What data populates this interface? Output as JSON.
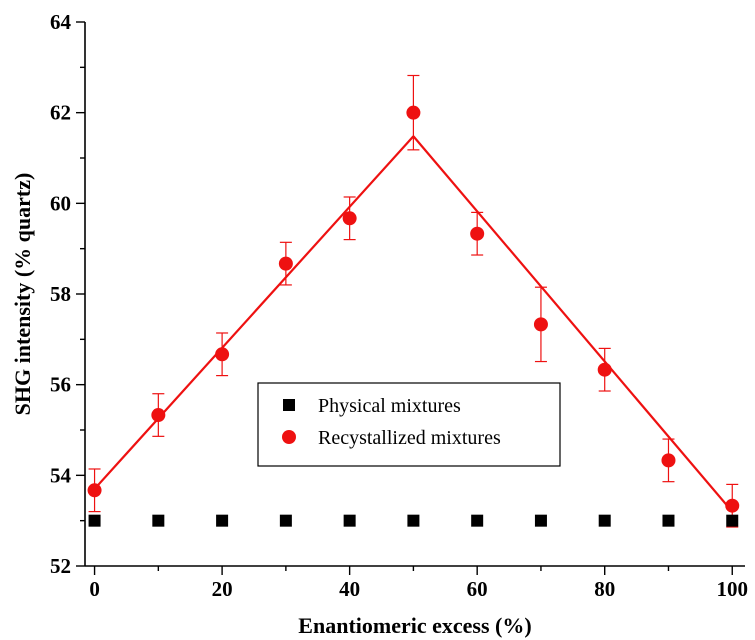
{
  "chart_data": {
    "type": "scatter",
    "xlabel": "Enantiomeric excess (%)",
    "ylabel": "SHG intensity (% quartz)",
    "xlim": [
      -1.5,
      102
    ],
    "ylim": [
      52,
      64
    ],
    "xticks": [
      0,
      20,
      40,
      60,
      80,
      100
    ],
    "yticks": [
      52,
      54,
      56,
      58,
      60,
      62,
      64
    ],
    "x_minor_step": 10,
    "y_minor_step": 1,
    "grid": false,
    "legend_position": "center",
    "series": [
      {
        "name": "Physical mixtures",
        "marker": "square",
        "color": "#000000",
        "x": [
          0,
          10,
          20,
          30,
          40,
          50,
          60,
          70,
          80,
          90,
          100
        ],
        "y": [
          53,
          53,
          53,
          53,
          53,
          53,
          53,
          53,
          53,
          53,
          53
        ]
      },
      {
        "name": "Recystallized mixtures",
        "marker": "circle",
        "color": "#ee1111",
        "x": [
          0,
          10,
          20,
          30,
          40,
          50,
          60,
          70,
          80,
          90,
          100
        ],
        "y": [
          53.67,
          55.33,
          56.67,
          58.67,
          59.67,
          62.0,
          59.33,
          57.33,
          56.33,
          54.33,
          53.33
        ],
        "error": [
          0.47,
          0.47,
          0.47,
          0.47,
          0.47,
          0.82,
          0.47,
          0.82,
          0.47,
          0.47,
          0.47
        ]
      }
    ],
    "fit_lines": [
      {
        "color": "#ee1111",
        "x": [
          0,
          50
        ],
        "y": [
          53.7,
          61.48
        ]
      },
      {
        "color": "#ee1111",
        "x": [
          50,
          100
        ],
        "y": [
          61.48,
          53.2
        ]
      }
    ]
  }
}
